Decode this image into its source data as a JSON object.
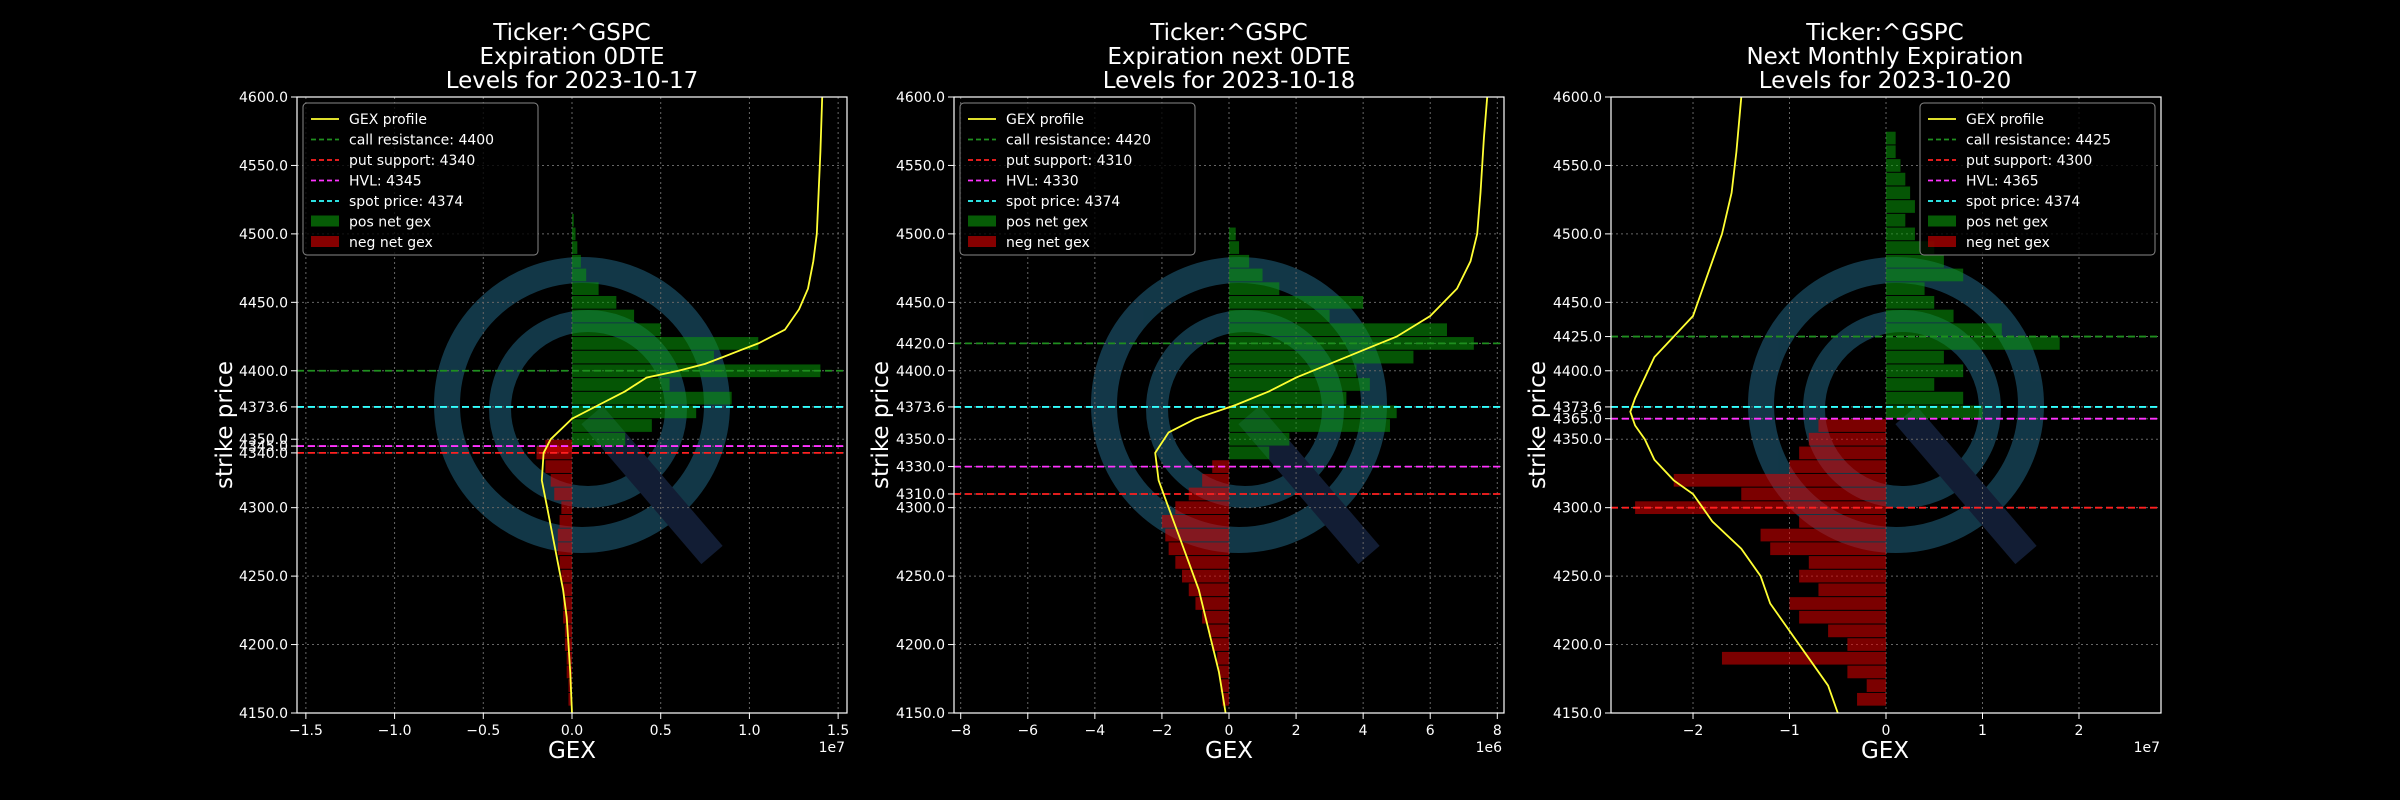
{
  "colors": {
    "background": "#000000",
    "gex_profile": "#ffff33",
    "call_resistance": "#1f8f1f",
    "put_support": "#ff2020",
    "hvl": "#ff33ff",
    "spot": "#33ffff",
    "pos_bar": "#0a9a0a",
    "neg_bar": "#e00000",
    "axis": "#ffffff",
    "grid": "#666666",
    "watermark": "#1b4f66"
  },
  "chart_data": [
    {
      "type": "bar",
      "title_lines": [
        "Ticker:^GSPC",
        "Expiration 0DTE",
        "Levels for 2023-10-17"
      ],
      "xlabel": "GEX",
      "ylabel": "strike price",
      "x_scale_label": "1e7",
      "xlim": [
        -1.55,
        1.55
      ],
      "ylim": [
        4150,
        4600
      ],
      "x_ticks": [
        -1.5,
        -1.0,
        -0.5,
        0.0,
        0.5,
        1.0,
        1.5
      ],
      "x_tick_labels": [
        "−1.5",
        "−1.0",
        "−0.5",
        "0.0",
        "0.5",
        "1.0",
        "1.5"
      ],
      "y_ticks": [
        4150,
        4200,
        4250,
        4300,
        4340,
        4345,
        4350,
        4373.6,
        4400,
        4450,
        4500,
        4550,
        4600
      ],
      "y_tick_labels": [
        "4150.0",
        "4200.0",
        "4250.0",
        "4300.0",
        "4340.0",
        "4345.0",
        "4350.0",
        "4373.6",
        "4400.0",
        "4450.0",
        "4500.0",
        "4550.0",
        "4600.0"
      ],
      "legend": [
        "GEX profile",
        "call resistance: 4400",
        "put support: 4340",
        "HVL: 4345",
        "spot price: 4374",
        "pos net gex",
        "neg net gex"
      ],
      "legend_position": "top-left",
      "levels": {
        "call_resistance": 4400,
        "put_support": 4340,
        "hvl": 4345,
        "spot": 4373.6
      },
      "bars": {
        "strikes": [
          4160,
          4170,
          4180,
          4190,
          4200,
          4210,
          4220,
          4230,
          4240,
          4250,
          4260,
          4270,
          4280,
          4290,
          4300,
          4310,
          4320,
          4330,
          4340,
          4345,
          4350,
          4360,
          4370,
          4380,
          4390,
          4400,
          4410,
          4420,
          4430,
          4440,
          4450,
          4460,
          4470,
          4480,
          4490,
          4500,
          4510
        ],
        "values": [
          -0.02,
          -0.02,
          -0.03,
          -0.03,
          -0.04,
          -0.04,
          -0.05,
          -0.05,
          -0.05,
          -0.06,
          -0.07,
          -0.08,
          -0.08,
          -0.07,
          -0.06,
          -0.1,
          -0.12,
          -0.15,
          -0.2,
          -0.15,
          0.3,
          0.45,
          0.7,
          0.9,
          0.55,
          1.4,
          0.8,
          1.05,
          0.5,
          0.35,
          0.25,
          0.15,
          0.08,
          0.05,
          0.03,
          0.02,
          0.01
        ]
      },
      "profile": {
        "x": [
          0.0,
          -0.01,
          -0.02,
          -0.03,
          -0.05,
          -0.08,
          -0.11,
          -0.14,
          -0.17,
          -0.16,
          -0.12,
          0.0,
          0.15,
          0.3,
          0.42,
          0.6,
          0.75,
          0.85,
          0.95,
          1.05,
          1.2,
          1.28,
          1.33,
          1.36,
          1.38,
          1.39,
          1.4,
          1.41
        ],
        "y": [
          4150,
          4180,
          4200,
          4220,
          4240,
          4260,
          4280,
          4300,
          4320,
          4340,
          4350,
          4365,
          4375,
          4385,
          4395,
          4400,
          4405,
          4410,
          4415,
          4420,
          4430,
          4445,
          4460,
          4480,
          4500,
          4530,
          4560,
          4600
        ]
      }
    },
    {
      "type": "bar",
      "title_lines": [
        "Ticker:^GSPC",
        "Expiration next 0DTE",
        "Levels for 2023-10-18"
      ],
      "xlabel": "GEX",
      "ylabel": "strike price",
      "x_scale_label": "1e6",
      "xlim": [
        -8.2,
        8.2
      ],
      "ylim": [
        4150,
        4600
      ],
      "x_ticks": [
        -8,
        -6,
        -4,
        -2,
        0,
        2,
        4,
        6,
        8
      ],
      "x_tick_labels": [
        "−8",
        "−6",
        "−4",
        "−2",
        "0",
        "2",
        "4",
        "6",
        "8"
      ],
      "y_ticks": [
        4150,
        4200,
        4250,
        4300,
        4310,
        4330,
        4350,
        4373.6,
        4400,
        4420,
        4450,
        4500,
        4550,
        4600
      ],
      "y_tick_labels": [
        "4150.0",
        "4200.0",
        "4250.0",
        "4300.0",
        "4310.0",
        "4330.0",
        "4350.0",
        "4373.6",
        "4400.0",
        "4420.0",
        "4450.0",
        "4500.0",
        "4550.0",
        "4600.0"
      ],
      "legend": [
        "GEX profile",
        "call resistance: 4420",
        "put support: 4310",
        "HVL: 4330",
        "spot price: 4374",
        "pos net gex",
        "neg net gex"
      ],
      "legend_position": "top-left",
      "levels": {
        "call_resistance": 4420,
        "put_support": 4310,
        "hvl": 4330,
        "spot": 4373.6
      },
      "bars": {
        "strikes": [
          4160,
          4170,
          4180,
          4190,
          4200,
          4210,
          4220,
          4230,
          4240,
          4250,
          4260,
          4270,
          4280,
          4290,
          4300,
          4310,
          4320,
          4330,
          4340,
          4350,
          4360,
          4370,
          4380,
          4390,
          4400,
          4410,
          4420,
          4430,
          4440,
          4450,
          4460,
          4470,
          4480,
          4490,
          4500
        ],
        "values": [
          -0.2,
          -0.25,
          -0.3,
          -0.35,
          -0.5,
          -0.6,
          -0.8,
          -1.0,
          -1.2,
          -1.4,
          -1.6,
          -1.8,
          -1.9,
          -2.0,
          -1.6,
          -1.2,
          -0.8,
          -0.5,
          1.2,
          1.8,
          4.8,
          5.0,
          3.5,
          4.2,
          3.8,
          5.5,
          7.3,
          6.5,
          3.0,
          4.0,
          1.5,
          1.0,
          0.6,
          0.3,
          0.2
        ]
      },
      "profile": {
        "x": [
          -0.1,
          -0.3,
          -0.5,
          -0.7,
          -0.9,
          -1.2,
          -1.5,
          -1.8,
          -2.1,
          -2.2,
          -1.8,
          -1.0,
          0.2,
          1.2,
          2.0,
          3.0,
          4.0,
          5.0,
          6.0,
          6.8,
          7.2,
          7.4,
          7.5,
          7.6,
          7.7
        ],
        "y": [
          4150,
          4180,
          4200,
          4220,
          4240,
          4260,
          4280,
          4300,
          4320,
          4340,
          4355,
          4365,
          4375,
          4385,
          4395,
          4405,
          4415,
          4425,
          4440,
          4460,
          4480,
          4500,
          4530,
          4570,
          4600
        ]
      }
    },
    {
      "type": "bar",
      "title_lines": [
        "Ticker:^GSPC",
        "Next Monthly Expiration",
        "Levels for 2023-10-20"
      ],
      "xlabel": "GEX",
      "ylabel": "strike price",
      "x_scale_label": "1e7",
      "xlim": [
        -2.85,
        2.85
      ],
      "ylim": [
        4150,
        4600
      ],
      "x_ticks": [
        -2,
        -1,
        0,
        1,
        2
      ],
      "x_tick_labels": [
        "−2",
        "−1",
        "0",
        "1",
        "2"
      ],
      "y_ticks": [
        4150,
        4200,
        4250,
        4300,
        4350,
        4365,
        4373.6,
        4400,
        4425,
        4450,
        4500,
        4550,
        4600
      ],
      "y_tick_labels": [
        "4150.0",
        "4200.0",
        "4250.0",
        "4300.0",
        "4350.0",
        "4365.0",
        "4373.6",
        "4400.0",
        "4425.0",
        "4450.0",
        "4500.0",
        "4550.0",
        "4600.0"
      ],
      "legend": [
        "GEX profile",
        "call resistance: 4425",
        "put support: 4300",
        "HVL: 4365",
        "spot price: 4374",
        "pos net gex",
        "neg net gex"
      ],
      "legend_position": "top-right",
      "levels": {
        "call_resistance": 4425,
        "put_support": 4300,
        "hvl": 4365,
        "spot": 4373.6
      },
      "bars": {
        "strikes": [
          4160,
          4170,
          4180,
          4190,
          4200,
          4210,
          4220,
          4230,
          4240,
          4250,
          4260,
          4270,
          4280,
          4290,
          4300,
          4310,
          4320,
          4330,
          4340,
          4350,
          4360,
          4370,
          4380,
          4390,
          4400,
          4410,
          4420,
          4430,
          4440,
          4450,
          4460,
          4470,
          4480,
          4490,
          4500,
          4510,
          4520,
          4530,
          4540,
          4550,
          4560,
          4570
        ],
        "values": [
          -0.3,
          -0.2,
          -0.4,
          -1.7,
          -0.4,
          -0.6,
          -0.9,
          -1.0,
          -0.7,
          -0.9,
          -0.8,
          -1.2,
          -1.3,
          -0.9,
          -2.6,
          -1.5,
          -2.2,
          -1.0,
          -0.9,
          -0.8,
          -0.7,
          1.0,
          0.8,
          0.5,
          0.8,
          0.6,
          1.8,
          1.2,
          0.7,
          0.5,
          0.4,
          0.8,
          0.6,
          0.5,
          0.3,
          0.2,
          0.3,
          0.25,
          0.2,
          0.15,
          0.1,
          0.1
        ]
      },
      "profile": {
        "x": [
          -0.5,
          -0.6,
          -0.8,
          -1.0,
          -1.2,
          -1.3,
          -1.5,
          -1.8,
          -1.9,
          -2.0,
          -2.2,
          -2.4,
          -2.5,
          -2.6,
          -2.65,
          -2.6,
          -2.5,
          -2.4,
          -2.2,
          -2.0,
          -1.9,
          -1.8,
          -1.7,
          -1.6,
          -1.55,
          -1.5
        ],
        "y": [
          4150,
          4170,
          4190,
          4210,
          4230,
          4250,
          4270,
          4290,
          4300,
          4310,
          4320,
          4335,
          4350,
          4360,
          4370,
          4380,
          4395,
          4410,
          4425,
          4440,
          4460,
          4480,
          4500,
          4530,
          4560,
          4600
        ]
      }
    }
  ]
}
